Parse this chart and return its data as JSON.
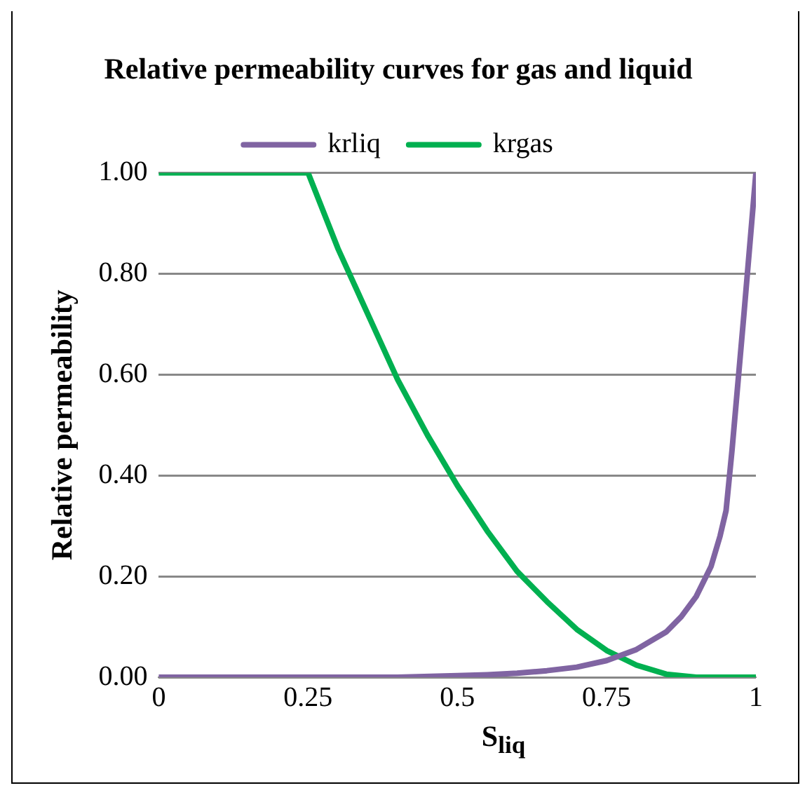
{
  "chart_data": {
    "type": "line",
    "title": "Relative permeability curves for gas and liquid",
    "xlabel": "S$_{liq}$",
    "ylabel": "Relative permeability",
    "series": [
      {
        "name": "krliq",
        "color": "#8064a2",
        "x": [
          0,
          0.1,
          0.2,
          0.3,
          0.4,
          0.5,
          0.55,
          0.6,
          0.65,
          0.7,
          0.75,
          0.8,
          0.85,
          0.875,
          0.9,
          0.925,
          0.94,
          0.95,
          0.96,
          0.98,
          1
        ],
        "values": [
          0,
          0,
          0,
          0,
          0,
          0.003,
          0.005,
          0.008,
          0.013,
          0.02,
          0.033,
          0.055,
          0.09,
          0.12,
          0.16,
          0.22,
          0.28,
          0.33,
          0.45,
          0.72,
          1
        ]
      },
      {
        "name": "krgas",
        "color": "#00b050",
        "x": [
          0,
          0.05,
          0.1,
          0.15,
          0.2,
          0.25,
          0.3,
          0.35,
          0.4,
          0.45,
          0.5,
          0.55,
          0.6,
          0.65,
          0.7,
          0.75,
          0.8,
          0.85,
          0.9,
          0.95,
          1
        ],
        "values": [
          1,
          1,
          1,
          1,
          1,
          1,
          0.85,
          0.72,
          0.59,
          0.48,
          0.38,
          0.29,
          0.21,
          0.15,
          0.095,
          0.053,
          0.024,
          0.006,
          0,
          0,
          0
        ]
      }
    ],
    "xlim": [
      0,
      1
    ],
    "xticks": [
      0,
      0.25,
      0.5,
      0.75,
      1
    ],
    "ylim": [
      0,
      1
    ],
    "yticks": [
      {
        "value": 0,
        "label": "0.00"
      },
      {
        "value": 0.2,
        "label": "0.20"
      },
      {
        "value": 0.4,
        "label": "0.40"
      },
      {
        "value": 0.6,
        "label": "0.60"
      },
      {
        "value": 0.8,
        "label": "0.80"
      },
      {
        "value": 1,
        "label": "1.00"
      }
    ],
    "grid": "y",
    "legend": "top",
    "marker": "none",
    "line_style": "solid"
  }
}
